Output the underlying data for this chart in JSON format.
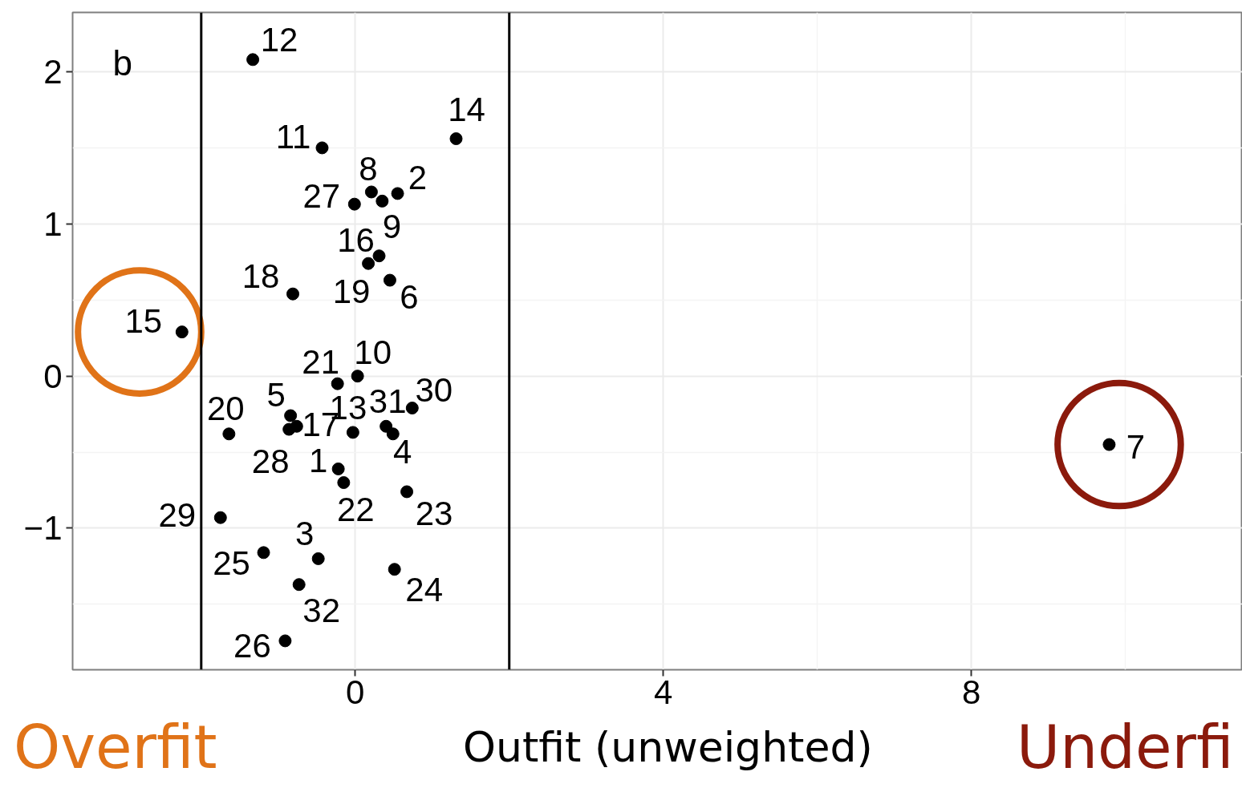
{
  "chart_data": {
    "type": "scatter",
    "xlabel": "Outfit (unweighted)",
    "annotations": [
      "b",
      "Overfit",
      "Underfi",
      {
        "text": "12",
        "x": -1.33,
        "y": 2.08
      },
      {
        "text": "11",
        "x": -0.43,
        "y": 1.5
      },
      {
        "text": "14",
        "x": 1.31,
        "y": 1.56
      },
      {
        "text": "8",
        "x": 0.21,
        "y": 1.21
      },
      {
        "text": "2",
        "x": 0.55,
        "y": 1.2
      },
      {
        "text": "27",
        "x": -0.01,
        "y": 1.13
      },
      {
        "text": "9",
        "x": 0.35,
        "y": 1.15
      },
      {
        "text": "16",
        "x": 0.31,
        "y": 0.79
      },
      {
        "text": "19",
        "x": 0.17,
        "y": 0.74
      },
      {
        "text": "6",
        "x": 0.45,
        "y": 0.63
      },
      {
        "text": "18",
        "x": -0.81,
        "y": 0.54
      },
      {
        "text": "15",
        "x": -2.25,
        "y": 0.29
      },
      {
        "text": "10",
        "x": 0.03,
        "y": 0.0
      },
      {
        "text": "21",
        "x": -0.23,
        "y": -0.05
      },
      {
        "text": "5",
        "x": -0.84,
        "y": -0.26
      },
      {
        "text": "17",
        "x": -0.76,
        "y": -0.33
      },
      {
        "text": "13",
        "x": -0.03,
        "y": -0.37
      },
      {
        "text": "31",
        "x": 0.4,
        "y": -0.33
      },
      {
        "text": "30",
        "x": 0.74,
        "y": -0.21
      },
      {
        "text": "4",
        "x": 0.49,
        "y": -0.38
      },
      {
        "text": "20",
        "x": -1.64,
        "y": -0.38
      },
      {
        "text": "7",
        "x": 9.79,
        "y": -0.45
      },
      {
        "text": "28",
        "x": -0.86,
        "y": -0.35
      },
      {
        "text": "1",
        "x": -0.22,
        "y": -0.61
      },
      {
        "text": "22",
        "x": -0.15,
        "y": -0.7
      },
      {
        "text": "23",
        "x": 0.67,
        "y": -0.76
      },
      {
        "text": "29",
        "x": -1.75,
        "y": -0.93
      },
      {
        "text": "25",
        "x": -1.19,
        "y": -1.16
      },
      {
        "text": "3",
        "x": -0.48,
        "y": -1.2
      },
      {
        "text": "24",
        "x": 0.51,
        "y": -1.27
      },
      {
        "text": "32",
        "x": -0.73,
        "y": -1.37
      },
      {
        "text": "26",
        "x": -0.91,
        "y": -1.74
      }
    ],
    "x": [
      -1.33,
      -0.43,
      1.31,
      0.21,
      0.55,
      -0.01,
      0.35,
      0.31,
      0.17,
      0.45,
      -0.81,
      -2.25,
      0.03,
      -0.23,
      -0.84,
      -0.76,
      -0.03,
      0.4,
      0.74,
      0.49,
      -1.64,
      9.79,
      -0.86,
      -0.22,
      -0.15,
      0.67,
      -1.75,
      -1.19,
      -0.48,
      0.51,
      -0.73,
      -0.91
    ],
    "values": [
      2.08,
      1.5,
      1.56,
      1.21,
      1.2,
      1.13,
      1.15,
      0.79,
      0.74,
      0.63,
      0.54,
      0.29,
      0.0,
      -0.05,
      -0.26,
      -0.33,
      -0.37,
      -0.33,
      -0.21,
      -0.38,
      -0.38,
      -0.45,
      -0.35,
      -0.61,
      -0.7,
      -0.76,
      -0.93,
      -1.16,
      -1.2,
      -1.27,
      -1.37,
      -1.74
    ],
    "color": "#000000",
    "marker": "circle",
    "xlim": [
      -3.67,
      11.52
    ],
    "ylim": [
      -1.93,
      2.39
    ],
    "xticks": [
      0,
      4,
      8
    ],
    "yticks": [
      -1,
      0,
      1,
      2
    ],
    "ref_lines": [
      {
        "axis": "x",
        "value": -2,
        "label": null,
        "color": "#000000"
      },
      {
        "axis": "x",
        "value": 2,
        "label": null,
        "color": "#000000"
      }
    ],
    "grid": true
  }
}
